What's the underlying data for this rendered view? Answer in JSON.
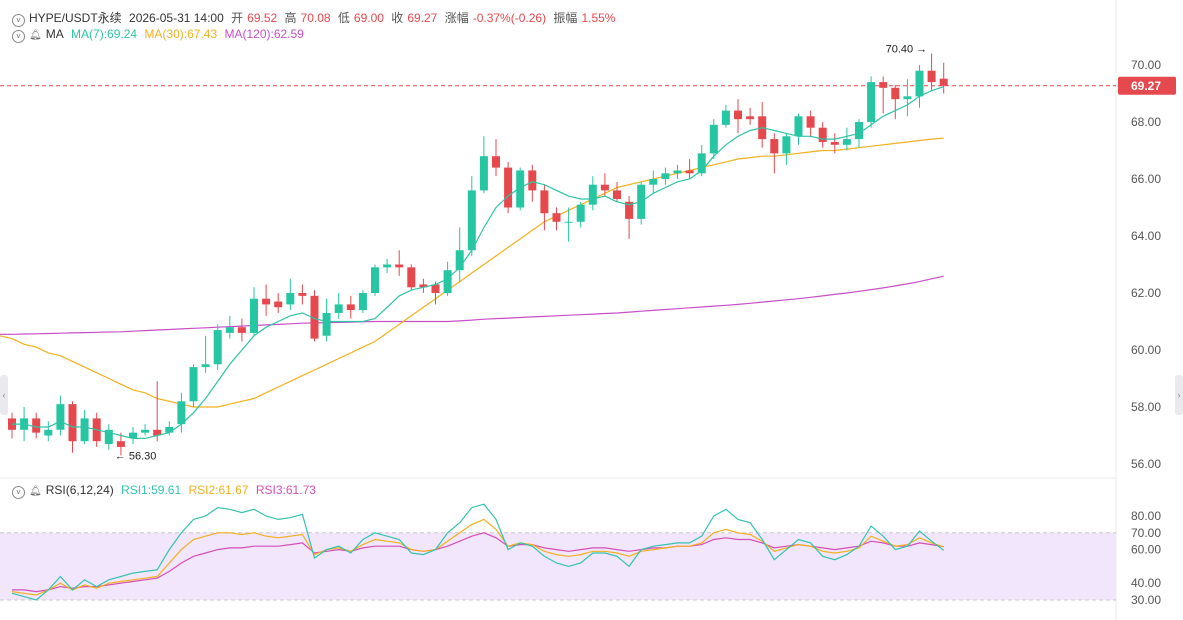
{
  "header": {
    "symbol": "HYPE/USDT永续",
    "datetime": "2026-05-31 14:00",
    "open_label": "开",
    "open": "69.52",
    "high_label": "高",
    "high": "70.08",
    "low_label": "低",
    "low": "69.00",
    "close_label": "收",
    "close": "69.27",
    "change_label": "涨幅",
    "change": "-0.37%(-0.26)",
    "amplitude_label": "振幅",
    "amplitude": "1.55%"
  },
  "ma_legend": {
    "label": "MA",
    "ma7": "MA(7):69.24",
    "ma30": "MA(30):67.43",
    "ma120": "MA(120):62.59"
  },
  "rsi_legend": {
    "label": "RSI(6,12,24)",
    "rsi1": "RSI1:59.61",
    "rsi2": "RSI2:61.67",
    "rsi3": "RSI3:61.73"
  },
  "colors": {
    "up": "#26c6a2",
    "down": "#e5484d",
    "ma7": "#2ec4a5",
    "ma30": "#f2b01e",
    "ma120": "#c84fc8",
    "rsi1": "#35c2b0",
    "rsi2": "#f2b01e",
    "rsi3": "#d44fb8",
    "rsi_band": "#f1e6fb"
  },
  "chart_data": {
    "type": "candlestick",
    "price_axis": {
      "ticks": [
        56,
        58,
        60,
        62,
        64,
        66,
        68,
        70
      ],
      "tick_labels": [
        "56.00",
        "58.00",
        "60.00",
        "62.00",
        "64.00",
        "66.00",
        "68.00",
        "70.00"
      ]
    },
    "last_price": "69.27",
    "annotations": {
      "high": "70.40",
      "low": "56.30"
    },
    "candles": [
      [
        57.6,
        57.2,
        57.8,
        56.9
      ],
      [
        57.2,
        57.6,
        58.0,
        56.8
      ],
      [
        57.6,
        57.1,
        57.8,
        56.9
      ],
      [
        57.0,
        57.2,
        57.5,
        56.8
      ],
      [
        57.2,
        58.1,
        58.4,
        57.0
      ],
      [
        58.1,
        56.8,
        58.2,
        56.4
      ],
      [
        56.8,
        57.6,
        57.9,
        56.7
      ],
      [
        57.6,
        56.8,
        57.8,
        56.6
      ],
      [
        56.7,
        57.2,
        57.4,
        56.5
      ],
      [
        56.8,
        56.6,
        57.1,
        56.3
      ],
      [
        56.9,
        57.1,
        57.3,
        56.7
      ],
      [
        57.1,
        57.2,
        57.4,
        57.0
      ],
      [
        57.2,
        57.0,
        58.9,
        56.8
      ],
      [
        57.1,
        57.3,
        57.5,
        57.0
      ],
      [
        57.4,
        58.2,
        58.5,
        57.1
      ],
      [
        58.2,
        59.4,
        59.5,
        58.0
      ],
      [
        59.4,
        59.5,
        60.5,
        59.2
      ],
      [
        59.5,
        60.7,
        60.9,
        59.3
      ],
      [
        60.6,
        60.8,
        61.2,
        60.4
      ],
      [
        60.8,
        60.6,
        61.1,
        60.3
      ],
      [
        60.6,
        61.8,
        62.2,
        60.5
      ],
      [
        61.8,
        61.6,
        62.3,
        61.2
      ],
      [
        61.7,
        61.5,
        62.0,
        61.3
      ],
      [
        61.6,
        62.0,
        62.5,
        61.4
      ],
      [
        62.0,
        61.9,
        62.3,
        61.6
      ],
      [
        61.9,
        60.4,
        62.1,
        60.3
      ],
      [
        60.5,
        61.3,
        61.8,
        60.3
      ],
      [
        61.3,
        61.6,
        62.0,
        61.1
      ],
      [
        61.6,
        61.4,
        61.9,
        61.1
      ],
      [
        61.4,
        62.0,
        62.1,
        61.3
      ],
      [
        62.0,
        62.9,
        63.0,
        61.9
      ],
      [
        62.9,
        63.0,
        63.2,
        62.7
      ],
      [
        63.0,
        62.9,
        63.5,
        62.6
      ],
      [
        62.9,
        62.2,
        63.0,
        62.1
      ],
      [
        62.3,
        62.2,
        62.5,
        62.0
      ],
      [
        62.3,
        62.0,
        62.4,
        61.6
      ],
      [
        62.0,
        62.8,
        63.1,
        61.9
      ],
      [
        62.8,
        63.5,
        64.3,
        62.4
      ],
      [
        63.5,
        65.6,
        66.1,
        63.3
      ],
      [
        65.6,
        66.8,
        67.5,
        65.5
      ],
      [
        66.8,
        66.4,
        67.4,
        66.1
      ],
      [
        66.4,
        65.0,
        66.6,
        64.8
      ],
      [
        65.0,
        66.3,
        66.4,
        64.9
      ],
      [
        66.3,
        65.6,
        66.5,
        65.2
      ],
      [
        65.6,
        64.8,
        65.8,
        64.2
      ],
      [
        64.8,
        64.5,
        65.0,
        64.2
      ],
      [
        64.5,
        64.5,
        65.0,
        63.8
      ],
      [
        64.5,
        65.1,
        65.2,
        64.3
      ],
      [
        65.1,
        65.8,
        66.1,
        64.9
      ],
      [
        65.8,
        65.6,
        66.2,
        65.4
      ],
      [
        65.6,
        65.3,
        65.9,
        65.2
      ],
      [
        65.2,
        64.6,
        65.4,
        63.9
      ],
      [
        64.6,
        65.8,
        65.9,
        64.4
      ],
      [
        65.8,
        66.0,
        66.3,
        65.5
      ],
      [
        66.0,
        66.2,
        66.4,
        65.8
      ],
      [
        66.2,
        66.3,
        66.5,
        66.0
      ],
      [
        66.3,
        66.2,
        66.7,
        66.0
      ],
      [
        66.2,
        66.9,
        67.2,
        66.1
      ],
      [
        66.9,
        67.9,
        68.1,
        66.7
      ],
      [
        67.9,
        68.4,
        68.6,
        67.8
      ],
      [
        68.4,
        68.1,
        68.8,
        67.6
      ],
      [
        68.2,
        68.1,
        68.5,
        67.9
      ],
      [
        68.2,
        67.4,
        68.7,
        67.1
      ],
      [
        67.4,
        66.9,
        67.6,
        66.2
      ],
      [
        66.9,
        67.5,
        67.6,
        66.5
      ],
      [
        67.5,
        68.2,
        68.3,
        67.2
      ],
      [
        68.2,
        67.8,
        68.4,
        67.5
      ],
      [
        67.8,
        67.3,
        68.0,
        67.1
      ],
      [
        67.3,
        67.2,
        67.6,
        66.9
      ],
      [
        67.2,
        67.4,
        67.8,
        67.0
      ],
      [
        67.4,
        68.0,
        68.1,
        67.1
      ],
      [
        68.0,
        69.4,
        69.6,
        67.8
      ],
      [
        69.4,
        69.2,
        69.6,
        68.3
      ],
      [
        69.2,
        68.8,
        69.3,
        68.1
      ],
      [
        68.8,
        68.9,
        69.5,
        68.2
      ],
      [
        68.9,
        69.8,
        70.0,
        68.5
      ],
      [
        69.8,
        69.4,
        70.4,
        69.1
      ],
      [
        69.52,
        69.27,
        70.08,
        69.0
      ]
    ],
    "ma7": [
      57.4,
      57.4,
      57.3,
      57.3,
      57.5,
      57.3,
      57.3,
      57.2,
      57.1,
      57.0,
      56.9,
      56.9,
      57.0,
      57.1,
      57.4,
      57.8,
      58.3,
      58.9,
      59.5,
      60.0,
      60.5,
      60.8,
      61.0,
      61.2,
      61.3,
      61.1,
      61.0,
      61.0,
      61.0,
      61.0,
      61.1,
      61.5,
      61.9,
      62.1,
      62.2,
      62.3,
      62.5,
      62.9,
      63.5,
      64.3,
      65.0,
      65.4,
      65.7,
      65.9,
      65.8,
      65.6,
      65.4,
      65.3,
      65.3,
      65.4,
      65.2,
      65.1,
      65.2,
      65.5,
      65.7,
      65.9,
      66.0,
      66.3,
      66.8,
      67.2,
      67.5,
      67.7,
      67.8,
      67.7,
      67.6,
      67.5,
      67.5,
      67.4,
      67.4,
      67.5,
      67.6,
      67.9,
      68.2,
      68.4,
      68.6,
      68.9,
      69.1,
      69.24
    ],
    "ma30": [
      60.4,
      60.2,
      60.1,
      59.9,
      59.8,
      59.6,
      59.4,
      59.2,
      59.0,
      58.8,
      58.6,
      58.5,
      58.3,
      58.2,
      58.1,
      58.0,
      58.0,
      58.0,
      58.1,
      58.2,
      58.3,
      58.5,
      58.7,
      58.9,
      59.1,
      59.3,
      59.5,
      59.7,
      59.9,
      60.1,
      60.3,
      60.6,
      60.9,
      61.2,
      61.5,
      61.8,
      62.1,
      62.4,
      62.7,
      63.0,
      63.3,
      63.6,
      63.9,
      64.2,
      64.5,
      64.7,
      64.9,
      65.1,
      65.3,
      65.5,
      65.7,
      65.8,
      65.9,
      66.0,
      66.1,
      66.2,
      66.3,
      66.4,
      66.5,
      66.6,
      66.7,
      66.75,
      66.8,
      66.8,
      66.85,
      66.9,
      66.95,
      67.0,
      67.0,
      67.05,
      67.1,
      67.15,
      67.2,
      67.25,
      67.3,
      67.35,
      67.4,
      67.43
    ],
    "ma120": [
      60.55,
      60.56,
      60.57,
      60.58,
      60.59,
      60.6,
      60.61,
      60.62,
      60.63,
      60.64,
      60.66,
      60.68,
      60.7,
      60.72,
      60.74,
      60.76,
      60.78,
      60.8,
      60.82,
      60.84,
      60.86,
      60.88,
      60.9,
      60.92,
      60.94,
      60.95,
      60.96,
      60.97,
      60.98,
      60.99,
      61.0,
      61.0,
      61.0,
      61.0,
      61.0,
      61.0,
      61.0,
      61.02,
      61.05,
      61.08,
      61.1,
      61.12,
      61.14,
      61.16,
      61.18,
      61.2,
      61.22,
      61.24,
      61.26,
      61.28,
      61.3,
      61.33,
      61.36,
      61.39,
      61.42,
      61.45,
      61.48,
      61.51,
      61.54,
      61.57,
      61.6,
      61.64,
      61.68,
      61.72,
      61.76,
      61.8,
      61.85,
      61.9,
      61.95,
      62.0,
      62.06,
      62.12,
      62.18,
      62.25,
      62.32,
      62.4,
      62.5,
      62.59
    ],
    "rsi_axis": {
      "ticks": [
        30,
        40,
        60,
        70,
        80
      ],
      "tick_labels": [
        "30.00",
        "40.00",
        "60.00",
        "70.00",
        "80.00"
      ],
      "band": [
        30,
        70
      ]
    },
    "rsi1": [
      34,
      32,
      30,
      36,
      44,
      36,
      42,
      38,
      42,
      44,
      46,
      47,
      48,
      60,
      70,
      78,
      80,
      85,
      84,
      82,
      84,
      80,
      78,
      79,
      81,
      55,
      60,
      62,
      58,
      66,
      70,
      68,
      66,
      58,
      57,
      60,
      70,
      76,
      85,
      87,
      78,
      60,
      64,
      62,
      56,
      52,
      50,
      52,
      58,
      58,
      56,
      50,
      60,
      62,
      63,
      64,
      64,
      68,
      80,
      84,
      78,
      76,
      66,
      54,
      60,
      66,
      64,
      56,
      54,
      57,
      62,
      74,
      68,
      60,
      62,
      71,
      65,
      59.61
    ],
    "rsi2": [
      35,
      34,
      33,
      36,
      40,
      36,
      39,
      37,
      40,
      41,
      42,
      43,
      44,
      52,
      60,
      66,
      68,
      70,
      70,
      69,
      70,
      68,
      67,
      68,
      69,
      57,
      60,
      61,
      59,
      63,
      66,
      65,
      64,
      60,
      59,
      60,
      65,
      70,
      75,
      78,
      72,
      62,
      64,
      63,
      59,
      57,
      56,
      57,
      59,
      59,
      58,
      56,
      59,
      60,
      61,
      62,
      62,
      64,
      70,
      72,
      70,
      69,
      65,
      59,
      61,
      63,
      62,
      59,
      58,
      59,
      61,
      68,
      65,
      62,
      63,
      67,
      64,
      61.67
    ],
    "rsi3": [
      36,
      36,
      35,
      36,
      38,
      37,
      38,
      38,
      39,
      40,
      41,
      42,
      43,
      47,
      52,
      56,
      58,
      60,
      61,
      61,
      62,
      62,
      62,
      63,
      64,
      58,
      59,
      60,
      59,
      61,
      62,
      62,
      62,
      60,
      59,
      60,
      62,
      65,
      68,
      70,
      67,
      62,
      63,
      63,
      61,
      60,
      59,
      60,
      61,
      61,
      60,
      59,
      60,
      61,
      61,
      62,
      62,
      63,
      66,
      67,
      66,
      66,
      64,
      61,
      62,
      63,
      62,
      61,
      60,
      61,
      62,
      65,
      64,
      62,
      62,
      64,
      63,
      61.73
    ]
  }
}
